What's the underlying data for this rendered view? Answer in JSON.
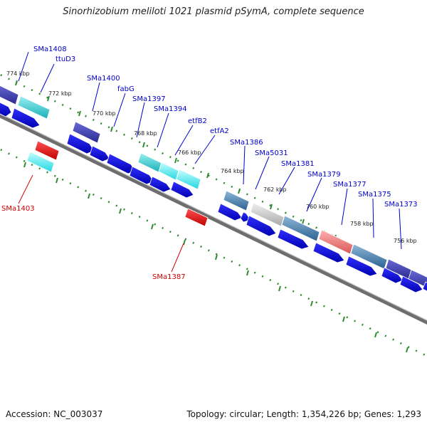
{
  "title": "Sinorhizobium meliloti 1021 plasmid pSymA, complete sequence",
  "accession": "Accession: NC_003037",
  "summary": "Topology: circular; Length: 1,354,226 bp; Genes: 1,293",
  "colors": {
    "backbone": "#808080",
    "cds": "#0000ee",
    "label_blue": "#0000cc",
    "label_red": "#cc0000",
    "tick": "#2e8b2e"
  },
  "kbp_labels": [
    "774 kbp",
    "772 kbp",
    "770 kbp",
    "768 kbp",
    "766 kbp",
    "764 kbp",
    "762 kbp",
    "760 kbp",
    "758 kbp",
    "756 kbp"
  ],
  "gene_labels_top": [
    "SMa1408",
    "ttuD3",
    "SMa1400",
    "fabG",
    "SMa1397",
    "SMa1394",
    "etfB2",
    "etfA2",
    "SMa1386",
    "SMa5031",
    "SMa1381",
    "SMa1379",
    "SMa1377",
    "SMa1375",
    "SMa1373"
  ],
  "gene_labels_bottom": [
    "SMa1403",
    "SMa1387"
  ]
}
